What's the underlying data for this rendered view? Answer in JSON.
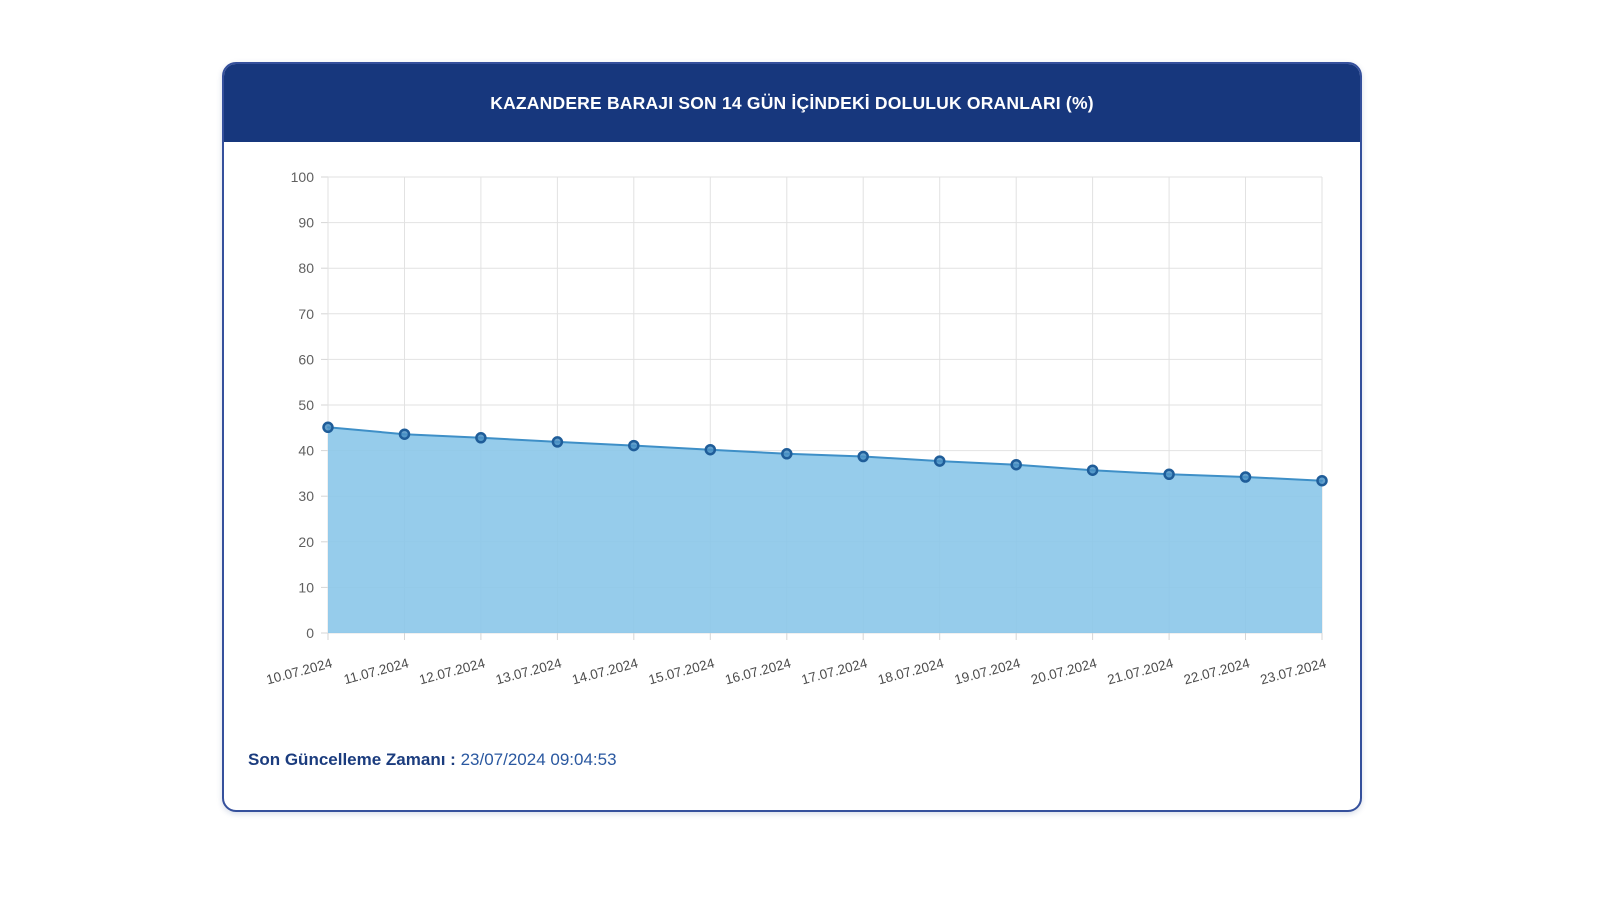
{
  "header": {
    "title": "KAZANDERE BARAJI SON 14 GÜN İÇİNDEKİ DOLULUK ORANLARI (%)"
  },
  "footer": {
    "label": "Son Güncelleme Zamanı",
    "separator": " : ",
    "timestamp": "23/07/2024 09:04:53"
  },
  "chart_data": {
    "type": "area",
    "title": "KAZANDERE BARAJI SON 14 GÜN İÇİNDEKİ DOLULUK ORANLARI (%)",
    "categories": [
      "10.07.2024",
      "11.07.2024",
      "12.07.2024",
      "13.07.2024",
      "14.07.2024",
      "15.07.2024",
      "16.07.2024",
      "17.07.2024",
      "18.07.2024",
      "19.07.2024",
      "20.07.2024",
      "21.07.2024",
      "22.07.2024",
      "23.07.2024"
    ],
    "values": [
      45.1,
      43.6,
      42.8,
      41.9,
      41.1,
      40.2,
      39.3,
      38.7,
      37.7,
      36.9,
      35.7,
      34.8,
      34.2,
      33.4
    ],
    "xlabel": "",
    "ylabel": "",
    "ylim": [
      0,
      100
    ],
    "ytick_step": 10,
    "grid": true,
    "legend": "none",
    "colors": {
      "header_bg": "#17377d",
      "card_border": "#35509c",
      "area_fill": "#8bc7e9",
      "line": "#3e8fc7",
      "marker_fill": "#4a90c4",
      "marker_stroke": "#1f5d99",
      "grid_line": "#e2e2e2",
      "tick_line": "#d6d6d6",
      "y_label": "#606060",
      "x_label": "#4c4c4c"
    }
  }
}
